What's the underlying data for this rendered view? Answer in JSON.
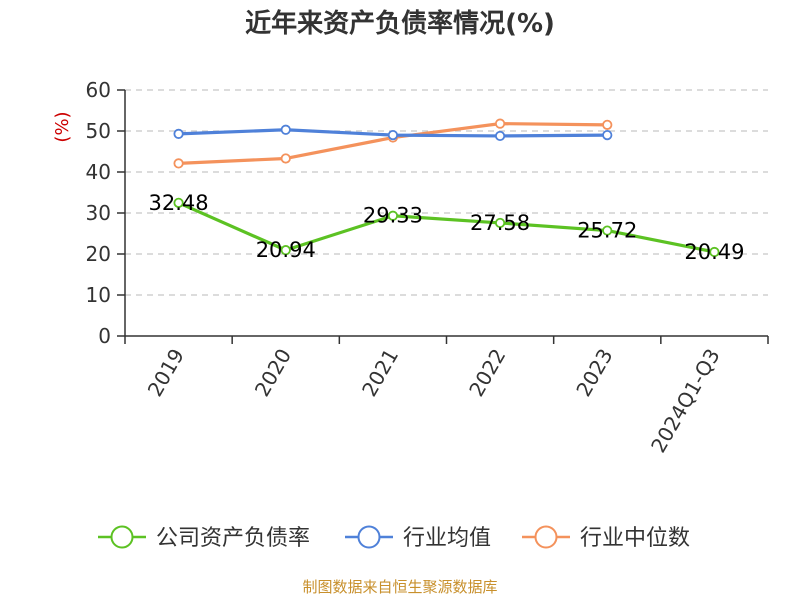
{
  "title": "近年来资产负债率情况(%)",
  "source": "制图数据来自恒生聚源数据库",
  "chart_data": {
    "type": "line",
    "title": "近年来资产负债率情况(%)",
    "xlabel": "",
    "ylabel": "(%)",
    "ylim": [
      0,
      60
    ],
    "yticks": [
      0,
      10,
      20,
      30,
      40,
      50,
      60
    ],
    "grid": true,
    "legend_position": "bottom",
    "categories": [
      "2019",
      "2020",
      "2021",
      "2022",
      "2023",
      "2024Q1-Q3"
    ],
    "series": [
      {
        "name": "公司资产负债率",
        "color": "#5cc223",
        "values": [
          32.48,
          20.94,
          29.33,
          27.58,
          25.72,
          20.49
        ],
        "labels": [
          "32.48",
          "20.94",
          "29.33",
          "27.58",
          "25.72",
          "20.49"
        ]
      },
      {
        "name": "行业均值",
        "color": "#4f81d9",
        "values": [
          49.3,
          50.3,
          49.0,
          48.8,
          49.0,
          null
        ]
      },
      {
        "name": "行业中位数",
        "color": "#f4925c",
        "values": [
          42.1,
          43.3,
          48.4,
          51.8,
          51.5,
          null
        ]
      }
    ]
  }
}
